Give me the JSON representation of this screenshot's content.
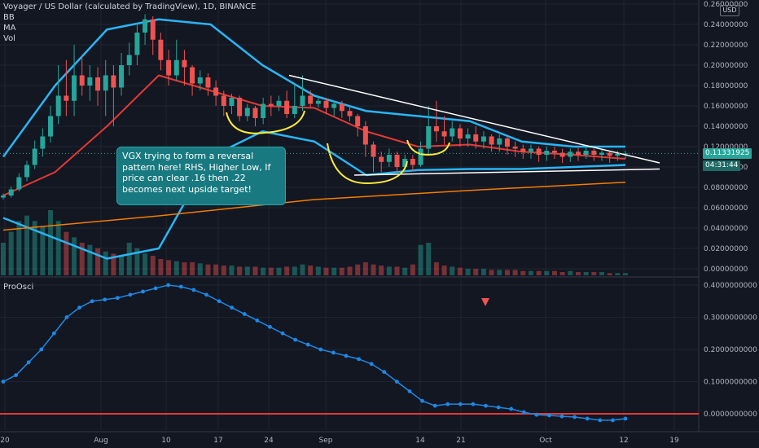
{
  "header": {
    "title": "Voyager / US Dollar (calculated by TradingView), 1D, BINANCE",
    "indicators": [
      "BB",
      "MA",
      "Vol"
    ]
  },
  "currency_button": "USD",
  "annotation": "VGX trying to form a reversal pattern here! RHS, Higher Low, If price can clear .16 then .22 becomes next upside target!",
  "price_tags": {
    "last_price": "0.11331925",
    "countdown": "04:31:44",
    "last_price_color": "#26a69a",
    "countdown_color": "#26a69a"
  },
  "oscillator_label": "ProOsci",
  "colors": {
    "up": "#26a69a",
    "down": "#ef5350",
    "bb": "#29b6f6",
    "ma": "#e53935",
    "ma_long": "#f57c00",
    "trendline": "#ffffff",
    "highlight": "#ffeb3b",
    "osc": "#1e88e5",
    "zero_line": "#e53935"
  },
  "chart_data": [
    {
      "type": "line",
      "title": "Voyager / US Dollar (calculated by TradingView), 1D, BINANCE",
      "y_axis": {
        "min": 0.0,
        "max": 0.26,
        "ticks": [
          "0.26000000",
          "0.24000000",
          "0.22000000",
          "0.20000000",
          "0.18000000",
          "0.16000000",
          "0.14000000",
          "0.12000000",
          "0.10000000",
          "0.08000000",
          "0.06000000",
          "0.04000000",
          "0.02000000",
          "0.00000000"
        ]
      },
      "x_axis": {
        "ticks": [
          "20",
          "Aug",
          "10",
          "17",
          "24",
          "Sep",
          "14",
          "21",
          "Oct",
          "12",
          "19"
        ]
      },
      "series": [
        {
          "name": "BB",
          "x": [
            "2021-07-20",
            "2021-07-27",
            "2021-08-03",
            "2021-08-10",
            "2021-08-17",
            "2021-08-24",
            "2021-08-31",
            "2021-09-07",
            "2021-09-14",
            "2021-09-21",
            "2021-09-28",
            "2021-10-05",
            "2021-10-12"
          ],
          "upper": [
            0.11,
            0.18,
            0.235,
            0.245,
            0.24,
            0.2,
            0.17,
            0.155,
            0.15,
            0.145,
            0.125,
            0.12,
            0.12
          ],
          "lower": [
            0.05,
            0.03,
            0.01,
            0.02,
            0.11,
            0.135,
            0.125,
            0.092,
            0.097,
            0.098,
            0.098,
            0.1,
            0.102
          ]
        },
        {
          "name": "MA",
          "x": [
            "2021-07-20",
            "2021-07-27",
            "2021-08-03",
            "2021-08-10",
            "2021-08-17",
            "2021-08-24",
            "2021-08-31",
            "2021-09-07",
            "2021-09-14",
            "2021-09-21",
            "2021-09-28",
            "2021-10-05",
            "2021-10-12"
          ],
          "values": [
            0.072,
            0.095,
            0.14,
            0.19,
            0.175,
            0.16,
            0.158,
            0.135,
            0.12,
            0.122,
            0.115,
            0.112,
            0.108
          ]
        },
        {
          "name": "MA long",
          "x": [
            "2021-07-20",
            "2021-08-10",
            "2021-08-31",
            "2021-09-21",
            "2021-10-12"
          ],
          "values": [
            0.038,
            0.052,
            0.068,
            0.077,
            0.085
          ]
        }
      ],
      "candles": [
        [
          0.07,
          0.072,
          0.068,
          0.074
        ],
        [
          0.072,
          0.078,
          0.07,
          0.081
        ],
        [
          0.078,
          0.09,
          0.076,
          0.094
        ],
        [
          0.09,
          0.102,
          0.086,
          0.106
        ],
        [
          0.102,
          0.118,
          0.098,
          0.126
        ],
        [
          0.118,
          0.13,
          0.11,
          0.138
        ],
        [
          0.13,
          0.15,
          0.124,
          0.16
        ],
        [
          0.15,
          0.17,
          0.142,
          0.2
        ],
        [
          0.17,
          0.165,
          0.15,
          0.205
        ],
        [
          0.165,
          0.19,
          0.15,
          0.22
        ],
        [
          0.19,
          0.18,
          0.17,
          0.21
        ],
        [
          0.18,
          0.188,
          0.165,
          0.2
        ],
        [
          0.188,
          0.175,
          0.16,
          0.198
        ],
        [
          0.175,
          0.19,
          0.15,
          0.205
        ],
        [
          0.19,
          0.178,
          0.14,
          0.2
        ],
        [
          0.178,
          0.2,
          0.17,
          0.212
        ],
        [
          0.2,
          0.21,
          0.19,
          0.222
        ],
        [
          0.21,
          0.232,
          0.2,
          0.242
        ],
        [
          0.232,
          0.245,
          0.22,
          0.25
        ],
        [
          0.245,
          0.225,
          0.21,
          0.248
        ],
        [
          0.225,
          0.205,
          0.195,
          0.232
        ],
        [
          0.205,
          0.19,
          0.18,
          0.215
        ],
        [
          0.19,
          0.205,
          0.185,
          0.225
        ],
        [
          0.205,
          0.198,
          0.18,
          0.215
        ],
        [
          0.198,
          0.182,
          0.17,
          0.2
        ],
        [
          0.182,
          0.188,
          0.175,
          0.195
        ],
        [
          0.188,
          0.178,
          0.17,
          0.192
        ],
        [
          0.178,
          0.17,
          0.16,
          0.185
        ],
        [
          0.17,
          0.16,
          0.15,
          0.175
        ],
        [
          0.16,
          0.168,
          0.152,
          0.172
        ],
        [
          0.168,
          0.15,
          0.145,
          0.17
        ],
        [
          0.15,
          0.158,
          0.145,
          0.162
        ],
        [
          0.158,
          0.148,
          0.14,
          0.16
        ],
        [
          0.148,
          0.162,
          0.142,
          0.168
        ],
        [
          0.162,
          0.16,
          0.15,
          0.17
        ],
        [
          0.16,
          0.165,
          0.155,
          0.17
        ],
        [
          0.165,
          0.152,
          0.148,
          0.175
        ],
        [
          0.152,
          0.16,
          0.148,
          0.182
        ],
        [
          0.16,
          0.17,
          0.155,
          0.19
        ],
        [
          0.17,
          0.162,
          0.158,
          0.175
        ],
        [
          0.162,
          0.165,
          0.158,
          0.17
        ],
        [
          0.165,
          0.158,
          0.152,
          0.168
        ],
        [
          0.158,
          0.162,
          0.15,
          0.165
        ],
        [
          0.162,
          0.155,
          0.148,
          0.165
        ],
        [
          0.155,
          0.15,
          0.145,
          0.16
        ],
        [
          0.15,
          0.14,
          0.13,
          0.152
        ],
        [
          0.14,
          0.122,
          0.11,
          0.145
        ],
        [
          0.122,
          0.11,
          0.095,
          0.125
        ],
        [
          0.11,
          0.105,
          0.095,
          0.115
        ],
        [
          0.105,
          0.112,
          0.1,
          0.118
        ],
        [
          0.112,
          0.1,
          0.095,
          0.115
        ],
        [
          0.1,
          0.108,
          0.095,
          0.112
        ],
        [
          0.108,
          0.102,
          0.096,
          0.112
        ],
        [
          0.102,
          0.118,
          0.1,
          0.125
        ],
        [
          0.118,
          0.14,
          0.112,
          0.16
        ],
        [
          0.14,
          0.135,
          0.125,
          0.165
        ],
        [
          0.135,
          0.13,
          0.122,
          0.15
        ],
        [
          0.13,
          0.138,
          0.125,
          0.145
        ],
        [
          0.138,
          0.128,
          0.12,
          0.142
        ],
        [
          0.128,
          0.132,
          0.12,
          0.138
        ],
        [
          0.132,
          0.125,
          0.118,
          0.14
        ],
        [
          0.125,
          0.13,
          0.118,
          0.135
        ],
        [
          0.13,
          0.122,
          0.115,
          0.132
        ],
        [
          0.122,
          0.128,
          0.115,
          0.132
        ],
        [
          0.128,
          0.12,
          0.112,
          0.13
        ],
        [
          0.12,
          0.118,
          0.11,
          0.125
        ],
        [
          0.118,
          0.115,
          0.108,
          0.122
        ],
        [
          0.115,
          0.118,
          0.108,
          0.122
        ],
        [
          0.118,
          0.112,
          0.105,
          0.12
        ],
        [
          0.112,
          0.116,
          0.106,
          0.12
        ],
        [
          0.116,
          0.114,
          0.108,
          0.12
        ],
        [
          0.114,
          0.11,
          0.104,
          0.118
        ],
        [
          0.11,
          0.115,
          0.105,
          0.118
        ],
        [
          0.115,
          0.112,
          0.106,
          0.12
        ],
        [
          0.112,
          0.116,
          0.108,
          0.12
        ],
        [
          0.116,
          0.112,
          0.106,
          0.118
        ],
        [
          0.112,
          0.114,
          0.106,
          0.118
        ],
        [
          0.114,
          0.111,
          0.104,
          0.116
        ],
        [
          0.111,
          0.113,
          0.106,
          0.116
        ],
        [
          0.113,
          0.1133,
          0.108,
          0.116
        ]
      ],
      "volume": [
        0.03,
        0.04,
        0.05,
        0.055,
        0.05,
        0.045,
        0.06,
        0.05,
        0.04,
        0.035,
        0.03,
        0.028,
        0.025,
        0.022,
        0.02,
        0.018,
        0.03,
        0.025,
        0.02,
        0.018,
        0.015,
        0.014,
        0.013,
        0.012,
        0.012,
        0.011,
        0.01,
        0.01,
        0.009,
        0.009,
        0.008,
        0.008,
        0.008,
        0.007,
        0.007,
        0.007,
        0.008,
        0.008,
        0.01,
        0.009,
        0.008,
        0.007,
        0.007,
        0.007,
        0.008,
        0.01,
        0.012,
        0.01,
        0.009,
        0.008,
        0.008,
        0.007,
        0.01,
        0.028,
        0.03,
        0.012,
        0.009,
        0.008,
        0.007,
        0.006,
        0.006,
        0.006,
        0.005,
        0.005,
        0.005,
        0.005,
        0.004,
        0.004,
        0.004,
        0.004,
        0.004,
        0.003,
        0.004,
        0.003,
        0.003,
        0.003,
        0.003,
        0.002,
        0.002,
        0.002
      ]
    },
    {
      "type": "line",
      "name": "ProOsci",
      "y_axis": {
        "min": -0.05,
        "max": 0.4,
        "ticks": [
          "0.4000000000",
          "0.3000000000",
          "0.2000000000",
          "0.1000000000",
          "0.0000000000"
        ]
      },
      "values": [
        0.1,
        0.12,
        0.16,
        0.2,
        0.25,
        0.3,
        0.33,
        0.35,
        0.355,
        0.36,
        0.37,
        0.38,
        0.39,
        0.4,
        0.395,
        0.385,
        0.37,
        0.35,
        0.33,
        0.31,
        0.29,
        0.27,
        0.25,
        0.23,
        0.215,
        0.2,
        0.19,
        0.18,
        0.17,
        0.155,
        0.13,
        0.1,
        0.07,
        0.04,
        0.025,
        0.03,
        0.03,
        0.03,
        0.025,
        0.02,
        0.015,
        0.005,
        -0.003,
        -0.005,
        -0.008,
        -0.01,
        -0.015,
        -0.02,
        -0.02,
        -0.015
      ],
      "zero_line": 0.0
    }
  ]
}
